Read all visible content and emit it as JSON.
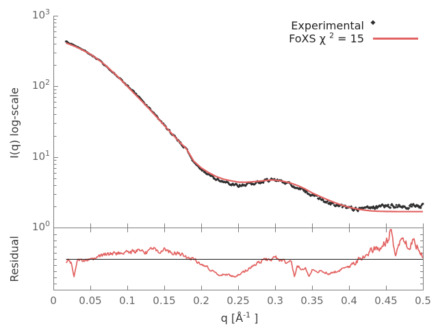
{
  "colors": {
    "experimental": "#2e2e2e",
    "fit": "#e26261",
    "axis": "#7b7b7b",
    "reference_line": "#1a1a1a",
    "tick_text": "#656565",
    "label_text": "#3a3a3a"
  },
  "legend": {
    "items": [
      {
        "label": "Experimental",
        "marker": "diamond",
        "color": "#2e2e2e"
      },
      {
        "label_prefix": "FoXS χ",
        "label_sup": "2",
        "label_suffix": " = 15",
        "marker": "line",
        "color": "#e26261"
      }
    ]
  },
  "chart_data": {
    "type": "line",
    "title": "",
    "xlabel": "q [Å⁻¹ ]",
    "xlabel_parts": {
      "prefix": "q [Å",
      "sup": "-1",
      "suffix": " ]"
    },
    "xlim": [
      0,
      0.5
    ],
    "x_data_range": [
      0.017,
      0.5
    ],
    "x_ticks": [
      {
        "label": "0",
        "value": 0.0
      },
      {
        "label": "0.05",
        "value": 0.05
      },
      {
        "label": "0.1",
        "value": 0.1
      },
      {
        "label": "0.15",
        "value": 0.15
      },
      {
        "label": "0.2",
        "value": 0.2
      },
      {
        "label": "0.25",
        "value": 0.25
      },
      {
        "label": "0.3",
        "value": 0.3
      },
      {
        "label": "0.35",
        "value": 0.35
      },
      {
        "label": "0.4",
        "value": 0.4
      },
      {
        "label": "0.45",
        "value": 0.45
      },
      {
        "label": "0.5",
        "value": 0.5
      }
    ],
    "panels": {
      "main": {
        "ylabel": "I(q) log-scale",
        "yscale": "log",
        "ylim": [
          1,
          1000
        ],
        "grid": false,
        "y_ticks": [
          {
            "base": "10",
            "exp": "3",
            "value": 1000
          },
          {
            "base": "10",
            "exp": "2",
            "value": 100
          },
          {
            "base": "10",
            "exp": "1",
            "value": 10
          },
          {
            "base": "10",
            "exp": "0",
            "value": 1
          }
        ],
        "series": [
          {
            "name": "Experimental",
            "type": "scatter",
            "marker": "diamond",
            "color": "#2e2e2e"
          },
          {
            "name": "FoXS χ2 = 15",
            "type": "line",
            "color": "#e26261"
          }
        ],
        "fit_curve_qI": [
          [
            0.017,
            412
          ],
          [
            0.02,
            400
          ],
          [
            0.025,
            383
          ],
          [
            0.03,
            365
          ],
          [
            0.035,
            345
          ],
          [
            0.04,
            325
          ],
          [
            0.045,
            305
          ],
          [
            0.05,
            285
          ],
          [
            0.055,
            263
          ],
          [
            0.06,
            242
          ],
          [
            0.065,
            221
          ],
          [
            0.07,
            200
          ],
          [
            0.075,
            180
          ],
          [
            0.08,
            161
          ],
          [
            0.085,
            144
          ],
          [
            0.09,
            128
          ],
          [
            0.095,
            113
          ],
          [
            0.1,
            100
          ],
          [
            0.11,
            78
          ],
          [
            0.12,
            61
          ],
          [
            0.13,
            47.5
          ],
          [
            0.14,
            36.5
          ],
          [
            0.15,
            28
          ],
          [
            0.16,
            21.5
          ],
          [
            0.17,
            16.6
          ],
          [
            0.18,
            13
          ],
          [
            0.19,
            8.7
          ],
          [
            0.2,
            7.0
          ],
          [
            0.21,
            6.0
          ],
          [
            0.22,
            5.3
          ],
          [
            0.23,
            4.85
          ],
          [
            0.24,
            4.6
          ],
          [
            0.25,
            4.4
          ],
          [
            0.26,
            4.38
          ],
          [
            0.27,
            4.45
          ],
          [
            0.28,
            4.55
          ],
          [
            0.29,
            4.68
          ],
          [
            0.295,
            4.72
          ],
          [
            0.3,
            4.7
          ],
          [
            0.31,
            4.55
          ],
          [
            0.32,
            4.3
          ],
          [
            0.33,
            3.95
          ],
          [
            0.34,
            3.55
          ],
          [
            0.35,
            3.1
          ],
          [
            0.36,
            2.78
          ],
          [
            0.37,
            2.5
          ],
          [
            0.38,
            2.27
          ],
          [
            0.39,
            2.08
          ],
          [
            0.4,
            1.94
          ],
          [
            0.41,
            1.84
          ],
          [
            0.42,
            1.77
          ],
          [
            0.43,
            1.72
          ],
          [
            0.44,
            1.7
          ],
          [
            0.45,
            1.69
          ],
          [
            0.46,
            1.685
          ],
          [
            0.47,
            1.68
          ],
          [
            0.48,
            1.68
          ],
          [
            0.49,
            1.68
          ],
          [
            0.5,
            1.68
          ]
        ],
        "experimental_over_fit_ratio": [
          [
            0.017,
            1.045
          ],
          [
            0.025,
            1.02
          ],
          [
            0.04,
            1.0
          ],
          [
            0.06,
            0.99
          ],
          [
            0.08,
            0.985
          ],
          [
            0.095,
            1.01
          ],
          [
            0.11,
            1.035
          ],
          [
            0.13,
            1.03
          ],
          [
            0.15,
            1.01
          ],
          [
            0.17,
            1.0
          ],
          [
            0.19,
            0.97
          ],
          [
            0.21,
            0.93
          ],
          [
            0.23,
            0.91
          ],
          [
            0.25,
            0.9
          ],
          [
            0.27,
            0.94
          ],
          [
            0.29,
            1.0
          ],
          [
            0.3,
            1.01
          ],
          [
            0.315,
            0.97
          ],
          [
            0.33,
            0.94
          ],
          [
            0.35,
            0.93
          ],
          [
            0.37,
            0.92
          ],
          [
            0.39,
            0.95
          ],
          [
            0.41,
            1.0
          ],
          [
            0.425,
            1.06
          ],
          [
            0.44,
            1.14
          ],
          [
            0.455,
            1.2
          ],
          [
            0.47,
            1.21
          ],
          [
            0.485,
            1.2
          ],
          [
            0.5,
            1.2
          ]
        ]
      },
      "residual": {
        "ylabel": "Residual",
        "yscale": "linear",
        "ylim": [
          0,
          2
        ],
        "minor_tick_step": 0.2,
        "reference_value": 1,
        "residual_curve_qv": [
          [
            0.017,
            0.92
          ],
          [
            0.02,
            0.96
          ],
          [
            0.024,
            0.88
          ],
          [
            0.028,
            0.42
          ],
          [
            0.032,
            0.95
          ],
          [
            0.04,
            0.95
          ],
          [
            0.05,
            0.98
          ],
          [
            0.06,
            1.05
          ],
          [
            0.07,
            1.16
          ],
          [
            0.08,
            1.16
          ],
          [
            0.09,
            1.2
          ],
          [
            0.1,
            1.22
          ],
          [
            0.11,
            1.24
          ],
          [
            0.12,
            1.27
          ],
          [
            0.128,
            1.22
          ],
          [
            0.135,
            1.38
          ],
          [
            0.143,
            1.25
          ],
          [
            0.15,
            1.3
          ],
          [
            0.158,
            1.2
          ],
          [
            0.165,
            1.18
          ],
          [
            0.175,
            1.12
          ],
          [
            0.185,
            1.02
          ],
          [
            0.195,
            0.92
          ],
          [
            0.205,
            0.78
          ],
          [
            0.215,
            0.62
          ],
          [
            0.225,
            0.48
          ],
          [
            0.235,
            0.5
          ],
          [
            0.245,
            0.42
          ],
          [
            0.255,
            0.55
          ],
          [
            0.265,
            0.68
          ],
          [
            0.275,
            0.88
          ],
          [
            0.285,
            0.96
          ],
          [
            0.295,
            1.02
          ],
          [
            0.3,
            1.06
          ],
          [
            0.308,
            0.98
          ],
          [
            0.315,
            0.9
          ],
          [
            0.322,
            0.88
          ],
          [
            0.326,
            0.45
          ],
          [
            0.33,
            0.8
          ],
          [
            0.336,
            0.62
          ],
          [
            0.341,
            0.7
          ],
          [
            0.346,
            0.42
          ],
          [
            0.351,
            0.68
          ],
          [
            0.358,
            0.6
          ],
          [
            0.365,
            0.58
          ],
          [
            0.372,
            0.52
          ],
          [
            0.378,
            0.56
          ],
          [
            0.385,
            0.62
          ],
          [
            0.392,
            0.7
          ],
          [
            0.4,
            0.76
          ],
          [
            0.408,
            0.86
          ],
          [
            0.414,
            1.0
          ],
          [
            0.42,
            1.05
          ],
          [
            0.425,
            1.15
          ],
          [
            0.43,
            1.28
          ],
          [
            0.435,
            1.36
          ],
          [
            0.44,
            1.26
          ],
          [
            0.446,
            1.5
          ],
          [
            0.452,
            1.6
          ],
          [
            0.457,
            1.95
          ],
          [
            0.461,
            1.4
          ],
          [
            0.463,
            1.05
          ],
          [
            0.467,
            1.5
          ],
          [
            0.472,
            1.6
          ],
          [
            0.477,
            1.48
          ],
          [
            0.481,
            1.36
          ],
          [
            0.486,
            1.55
          ],
          [
            0.49,
            1.5
          ],
          [
            0.494,
            1.3
          ],
          [
            0.497,
            1.18
          ],
          [
            0.5,
            1.1
          ]
        ]
      }
    }
  }
}
